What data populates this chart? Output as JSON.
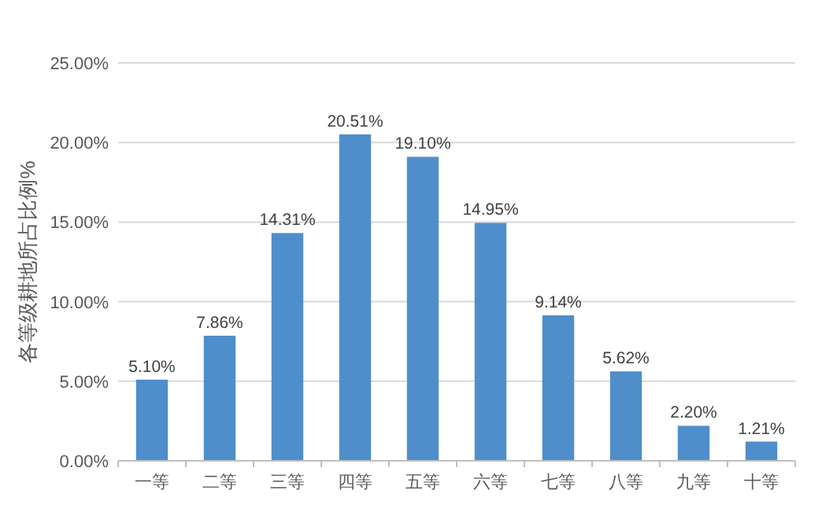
{
  "chart_data": {
    "type": "bar",
    "ylabel": "各等级耕地所占比例%",
    "categories": [
      "一等",
      "二等",
      "三等",
      "四等",
      "五等",
      "六等",
      "七等",
      "八等",
      "九等",
      "十等"
    ],
    "values": [
      5.1,
      7.86,
      14.31,
      20.51,
      19.1,
      14.95,
      9.14,
      5.62,
      2.2,
      1.21
    ],
    "value_labels": [
      "5.10%",
      "7.86%",
      "14.31%",
      "20.51%",
      "19.10%",
      "14.95%",
      "9.14%",
      "5.62%",
      "2.20%",
      "1.21%"
    ],
    "color": "#4f8ecb",
    "ylim": [
      0,
      25
    ],
    "yticks": [
      {
        "value": 0,
        "label": "0.00%"
      },
      {
        "value": 5,
        "label": "5.00%"
      },
      {
        "value": 10,
        "label": "10.00%"
      },
      {
        "value": 15,
        "label": "15.00%"
      },
      {
        "value": 20,
        "label": "20.00%"
      },
      {
        "value": 25,
        "label": "25.00%"
      }
    ],
    "grid": "y"
  }
}
